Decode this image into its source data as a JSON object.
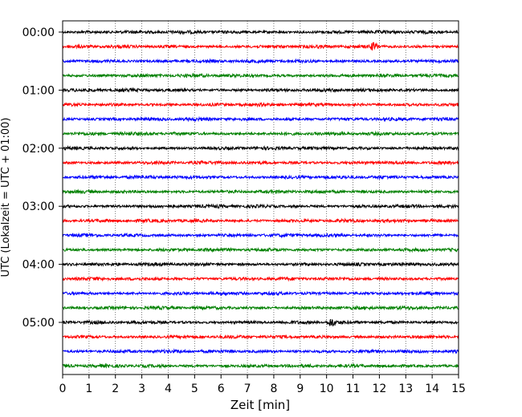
{
  "chart_data": {
    "type": "line",
    "xlabel": "Zeit  [min]",
    "ylabel": "UTC (Lokalzeit = UTC + 01:00)",
    "xlim": [
      0,
      15
    ],
    "x_ticks": [
      "0",
      "1",
      "2",
      "3",
      "4",
      "5",
      "6",
      "7",
      "8",
      "9",
      "10",
      "11",
      "12",
      "13",
      "14",
      "15"
    ],
    "y_ticks": [
      "00:00",
      "01:00",
      "02:00",
      "03:00",
      "04:00",
      "05:00"
    ],
    "vertical_grid": true,
    "trace_interval_min": 15,
    "trace_count": 24,
    "trace_colors": [
      "#000000",
      "#ff0000",
      "#0000ff",
      "#008000"
    ],
    "notable_events": [
      {
        "trace": 1,
        "minute": 11.8
      },
      {
        "trace": 20,
        "minute": 10.2
      }
    ]
  }
}
